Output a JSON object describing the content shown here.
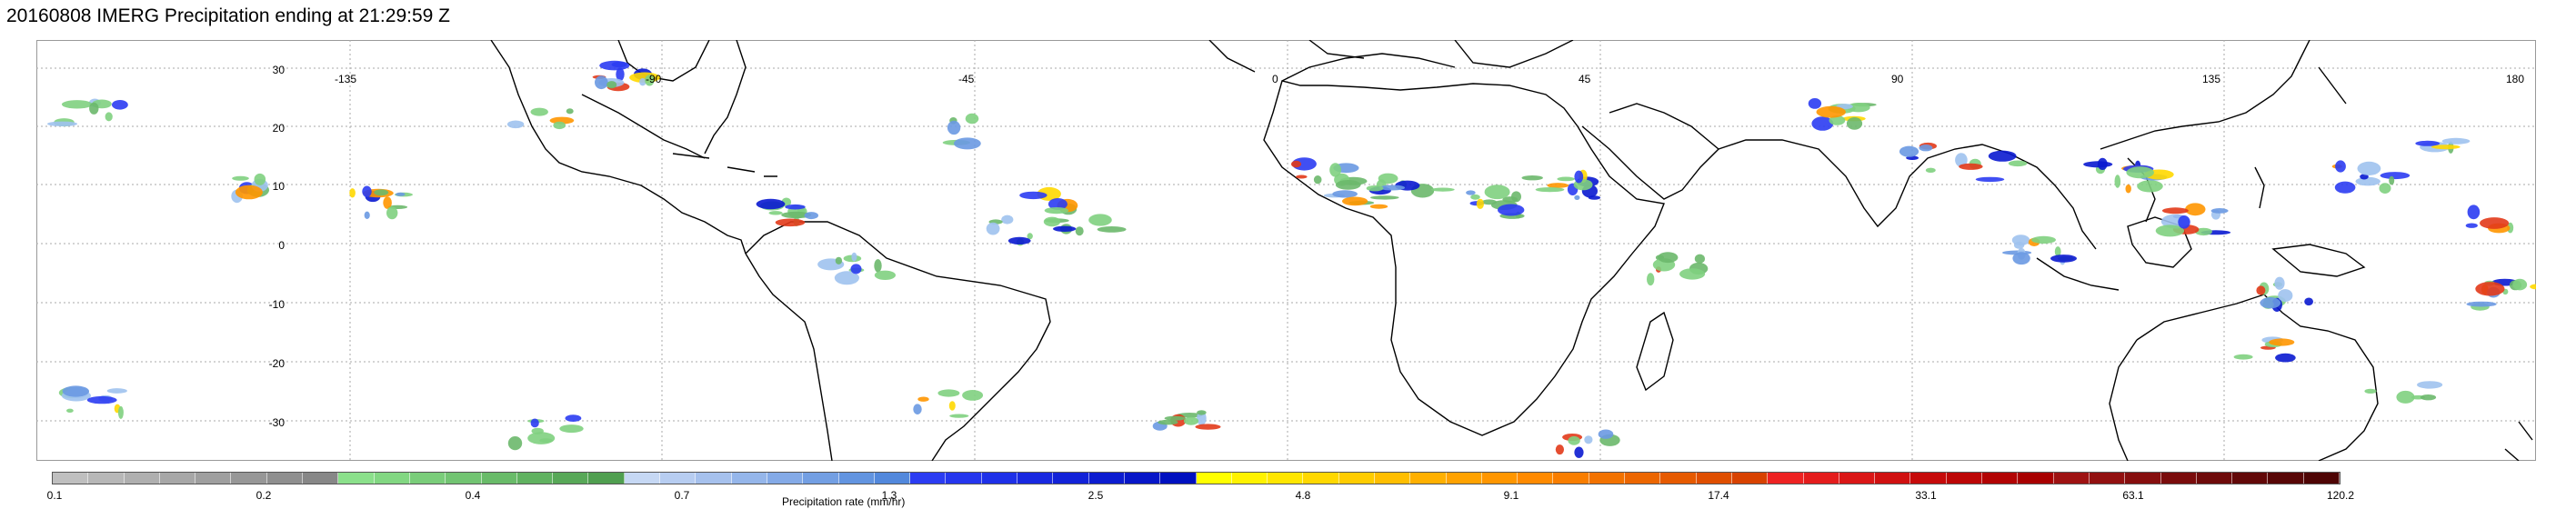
{
  "title": "20160808 IMERG Precipitation ending at 21:29:59 Z",
  "map": {
    "lat_labels": [
      "30",
      "20",
      "10",
      "0",
      "-10",
      "-20",
      "-30"
    ],
    "lon_labels": [
      "-135",
      "-90",
      "-45",
      "0",
      "45",
      "90",
      "135",
      "180"
    ],
    "gridline_color": "#aaaaaa",
    "coastline_color": "#000000"
  },
  "colorbar": {
    "label": "Precipitation rate (mm/hr)",
    "tick_labels": [
      "0.1",
      "0.2",
      "0.4",
      "0.7",
      "1.3",
      "2.5",
      "4.8",
      "9.1",
      "17.4",
      "33.1",
      "63.1",
      "120.2"
    ],
    "colors": [
      "#bfbfbf",
      "#b7b7b7",
      "#afafaf",
      "#a7a7a7",
      "#9f9f9f",
      "#979797",
      "#8f8f8f",
      "#878787",
      "#8be08b",
      "#82d782",
      "#7acd7a",
      "#72c472",
      "#69bb69",
      "#60b260",
      "#58a858",
      "#509f50",
      "#c6d8f4",
      "#b7cdf1",
      "#a6c1ed",
      "#95b6ea",
      "#84aae7",
      "#739fe3",
      "#6294e0",
      "#5288dc",
      "#2b3cf2",
      "#2536ee",
      "#1e30e8",
      "#1828e0",
      "#1222d8",
      "#0c1cd0",
      "#0716c8",
      "#0010c0",
      "#ffff00",
      "#fff200",
      "#ffe600",
      "#ffd800",
      "#ffcc00",
      "#ffbe00",
      "#ffb000",
      "#ffa200",
      "#ff9600",
      "#ff8a00",
      "#f97e00",
      "#f27200",
      "#ec6600",
      "#e65a00",
      "#df4e00",
      "#d84200",
      "#ee2222",
      "#e41c1c",
      "#da1616",
      "#d01010",
      "#c60a0a",
      "#bc0606",
      "#b20303",
      "#a80000",
      "#9e1212",
      "#921010",
      "#860e0e",
      "#7a0c0c",
      "#6e0a0a",
      "#620808",
      "#580606",
      "#4e0404"
    ]
  }
}
